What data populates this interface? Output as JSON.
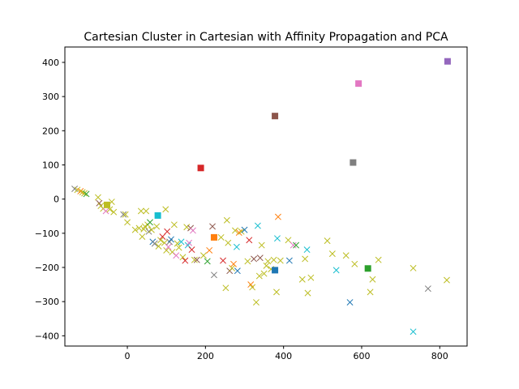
{
  "chart_data": {
    "type": "scatter",
    "title": "Cartesian Cluster in Cartesian with Affinity Propagation and PCA",
    "xlabel": "",
    "ylabel": "",
    "xlim": [
      -160,
      870
    ],
    "ylim": [
      -430,
      445
    ],
    "xticks": [
      0,
      200,
      400,
      600,
      800
    ],
    "yticks": [
      -400,
      -300,
      -200,
      -100,
      0,
      100,
      200,
      300,
      400
    ],
    "grid": false,
    "legend": "none",
    "centers": [
      {
        "x": 820,
        "y": 403,
        "color": "#9467bd"
      },
      {
        "x": 592,
        "y": 338,
        "color": "#e377c2"
      },
      {
        "x": 378,
        "y": 243,
        "color": "#8c564b"
      },
      {
        "x": 578,
        "y": 107,
        "color": "#7f7f7f"
      },
      {
        "x": 188,
        "y": 91,
        "color": "#d62728"
      },
      {
        "x": -52,
        "y": -17,
        "color": "#bcbd22"
      },
      {
        "x": 78,
        "y": -48,
        "color": "#17becf"
      },
      {
        "x": 222,
        "y": -112,
        "color": "#ff7f0e"
      },
      {
        "x": 378,
        "y": -208,
        "color": "#1f77b4"
      },
      {
        "x": 616,
        "y": -203,
        "color": "#2ca02c"
      }
    ],
    "points": [
      {
        "x": -135,
        "y": 30,
        "color": "#7f7f7f"
      },
      {
        "x": -128,
        "y": 27,
        "color": "#bcbd22"
      },
      {
        "x": -120,
        "y": 23,
        "color": "#ff7f0e"
      },
      {
        "x": -115,
        "y": 20,
        "color": "#bcbd22"
      },
      {
        "x": -110,
        "y": 17,
        "color": "#bcbd22"
      },
      {
        "x": -105,
        "y": 15,
        "color": "#2ca02c"
      },
      {
        "x": -75,
        "y": 5,
        "color": "#bcbd22"
      },
      {
        "x": -72,
        "y": -12,
        "color": "#8c564b"
      },
      {
        "x": -68,
        "y": -20,
        "color": "#bcbd22"
      },
      {
        "x": -62,
        "y": -28,
        "color": "#bcbd22"
      },
      {
        "x": -55,
        "y": -35,
        "color": "#e377c2"
      },
      {
        "x": -45,
        "y": -30,
        "color": "#bcbd22"
      },
      {
        "x": -40,
        "y": -8,
        "color": "#bcbd22"
      },
      {
        "x": -35,
        "y": -38,
        "color": "#bcbd22"
      },
      {
        "x": -10,
        "y": -45,
        "color": "#7f7f7f"
      },
      {
        "x": -5,
        "y": -45,
        "color": "#bcbd22"
      },
      {
        "x": 0,
        "y": -68,
        "color": "#bcbd22"
      },
      {
        "x": 20,
        "y": -90,
        "color": "#bcbd22"
      },
      {
        "x": 30,
        "y": -85,
        "color": "#bcbd22"
      },
      {
        "x": 35,
        "y": -35,
        "color": "#bcbd22"
      },
      {
        "x": 38,
        "y": -110,
        "color": "#bcbd22"
      },
      {
        "x": 42,
        "y": -88,
        "color": "#bcbd22"
      },
      {
        "x": 45,
        "y": -80,
        "color": "#bcbd22"
      },
      {
        "x": 48,
        "y": -35,
        "color": "#bcbd22"
      },
      {
        "x": 52,
        "y": -75,
        "color": "#bcbd22"
      },
      {
        "x": 55,
        "y": -95,
        "color": "#7f7f7f"
      },
      {
        "x": 58,
        "y": -68,
        "color": "#2ca02c"
      },
      {
        "x": 62,
        "y": -90,
        "color": "#bcbd22"
      },
      {
        "x": 65,
        "y": -125,
        "color": "#1f77b4"
      },
      {
        "x": 70,
        "y": -130,
        "color": "#7f7f7f"
      },
      {
        "x": 75,
        "y": -80,
        "color": "#bcbd22"
      },
      {
        "x": 80,
        "y": -138,
        "color": "#bcbd22"
      },
      {
        "x": 85,
        "y": -120,
        "color": "#bcbd22"
      },
      {
        "x": 90,
        "y": -110,
        "color": "#d62728"
      },
      {
        "x": 95,
        "y": -128,
        "color": "#bcbd22"
      },
      {
        "x": 98,
        "y": -30,
        "color": "#bcbd22"
      },
      {
        "x": 100,
        "y": -150,
        "color": "#bcbd22"
      },
      {
        "x": 102,
        "y": -95,
        "color": "#d62728"
      },
      {
        "x": 105,
        "y": -140,
        "color": "#e377c2"
      },
      {
        "x": 108,
        "y": -125,
        "color": "#7f7f7f"
      },
      {
        "x": 112,
        "y": -118,
        "color": "#1f77b4"
      },
      {
        "x": 115,
        "y": -155,
        "color": "#bcbd22"
      },
      {
        "x": 120,
        "y": -75,
        "color": "#bcbd22"
      },
      {
        "x": 125,
        "y": -165,
        "color": "#e377c2"
      },
      {
        "x": 128,
        "y": -130,
        "color": "#bcbd22"
      },
      {
        "x": 132,
        "y": -142,
        "color": "#bcbd22"
      },
      {
        "x": 138,
        "y": -125,
        "color": "#17becf"
      },
      {
        "x": 142,
        "y": -170,
        "color": "#bcbd22"
      },
      {
        "x": 148,
        "y": -180,
        "color": "#d62728"
      },
      {
        "x": 152,
        "y": -82,
        "color": "#bcbd22"
      },
      {
        "x": 155,
        "y": -135,
        "color": "#17becf"
      },
      {
        "x": 158,
        "y": -128,
        "color": "#e377c2"
      },
      {
        "x": 162,
        "y": -85,
        "color": "#8c564b"
      },
      {
        "x": 165,
        "y": -148,
        "color": "#d62728"
      },
      {
        "x": 168,
        "y": -92,
        "color": "#e377c2"
      },
      {
        "x": 172,
        "y": -178,
        "color": "#bcbd22"
      },
      {
        "x": 178,
        "y": -178,
        "color": "#8c564b"
      },
      {
        "x": 195,
        "y": -165,
        "color": "#bcbd22"
      },
      {
        "x": 205,
        "y": -182,
        "color": "#2ca02c"
      },
      {
        "x": 210,
        "y": -150,
        "color": "#ff7f0e"
      },
      {
        "x": 218,
        "y": -80,
        "color": "#8c564b"
      },
      {
        "x": 222,
        "y": -222,
        "color": "#7f7f7f"
      },
      {
        "x": 240,
        "y": -112,
        "color": "#bcbd22"
      },
      {
        "x": 245,
        "y": -180,
        "color": "#d62728"
      },
      {
        "x": 252,
        "y": -260,
        "color": "#bcbd22"
      },
      {
        "x": 255,
        "y": -62,
        "color": "#bcbd22"
      },
      {
        "x": 258,
        "y": -128,
        "color": "#bcbd22"
      },
      {
        "x": 262,
        "y": -210,
        "color": "#8c564b"
      },
      {
        "x": 268,
        "y": -202,
        "color": "#bcbd22"
      },
      {
        "x": 272,
        "y": -190,
        "color": "#ff7f0e"
      },
      {
        "x": 276,
        "y": -92,
        "color": "#bcbd22"
      },
      {
        "x": 280,
        "y": -140,
        "color": "#17becf"
      },
      {
        "x": 282,
        "y": -210,
        "color": "#1f77b4"
      },
      {
        "x": 286,
        "y": -98,
        "color": "#ff7f0e"
      },
      {
        "x": 292,
        "y": -95,
        "color": "#bcbd22"
      },
      {
        "x": 300,
        "y": -90,
        "color": "#1f77b4"
      },
      {
        "x": 308,
        "y": -182,
        "color": "#bcbd22"
      },
      {
        "x": 312,
        "y": -120,
        "color": "#d62728"
      },
      {
        "x": 316,
        "y": -250,
        "color": "#ff7f0e"
      },
      {
        "x": 320,
        "y": -258,
        "color": "#bcbd22"
      },
      {
        "x": 324,
        "y": -175,
        "color": "#8c564b"
      },
      {
        "x": 330,
        "y": -302,
        "color": "#bcbd22"
      },
      {
        "x": 334,
        "y": -78,
        "color": "#17becf"
      },
      {
        "x": 338,
        "y": -225,
        "color": "#bcbd22"
      },
      {
        "x": 340,
        "y": -172,
        "color": "#8c564b"
      },
      {
        "x": 344,
        "y": -135,
        "color": "#bcbd22"
      },
      {
        "x": 350,
        "y": -218,
        "color": "#bcbd22"
      },
      {
        "x": 356,
        "y": -195,
        "color": "#bcbd22"
      },
      {
        "x": 360,
        "y": -182,
        "color": "#bcbd22"
      },
      {
        "x": 368,
        "y": -205,
        "color": "#bcbd22"
      },
      {
        "x": 375,
        "y": -178,
        "color": "#bcbd22"
      },
      {
        "x": 382,
        "y": -272,
        "color": "#bcbd22"
      },
      {
        "x": 384,
        "y": -115,
        "color": "#17becf"
      },
      {
        "x": 386,
        "y": -52,
        "color": "#ff7f0e"
      },
      {
        "x": 392,
        "y": -180,
        "color": "#bcbd22"
      },
      {
        "x": 412,
        "y": -120,
        "color": "#bcbd22"
      },
      {
        "x": 415,
        "y": -180,
        "color": "#1f77b4"
      },
      {
        "x": 425,
        "y": -135,
        "color": "#e377c2"
      },
      {
        "x": 432,
        "y": -135,
        "color": "#2ca02c"
      },
      {
        "x": 448,
        "y": -235,
        "color": "#bcbd22"
      },
      {
        "x": 455,
        "y": -175,
        "color": "#bcbd22"
      },
      {
        "x": 460,
        "y": -148,
        "color": "#17becf"
      },
      {
        "x": 462,
        "y": -275,
        "color": "#bcbd22"
      },
      {
        "x": 470,
        "y": -230,
        "color": "#bcbd22"
      },
      {
        "x": 512,
        "y": -122,
        "color": "#bcbd22"
      },
      {
        "x": 525,
        "y": -160,
        "color": "#bcbd22"
      },
      {
        "x": 535,
        "y": -208,
        "color": "#17becf"
      },
      {
        "x": 560,
        "y": -165,
        "color": "#bcbd22"
      },
      {
        "x": 570,
        "y": -302,
        "color": "#1f77b4"
      },
      {
        "x": 582,
        "y": -190,
        "color": "#bcbd22"
      },
      {
        "x": 622,
        "y": -272,
        "color": "#bcbd22"
      },
      {
        "x": 628,
        "y": -235,
        "color": "#bcbd22"
      },
      {
        "x": 643,
        "y": -178,
        "color": "#bcbd22"
      },
      {
        "x": 732,
        "y": -202,
        "color": "#bcbd22"
      },
      {
        "x": 732,
        "y": -388,
        "color": "#17becf"
      },
      {
        "x": 770,
        "y": -262,
        "color": "#7f7f7f"
      },
      {
        "x": 818,
        "y": -237,
        "color": "#bcbd22"
      }
    ]
  }
}
